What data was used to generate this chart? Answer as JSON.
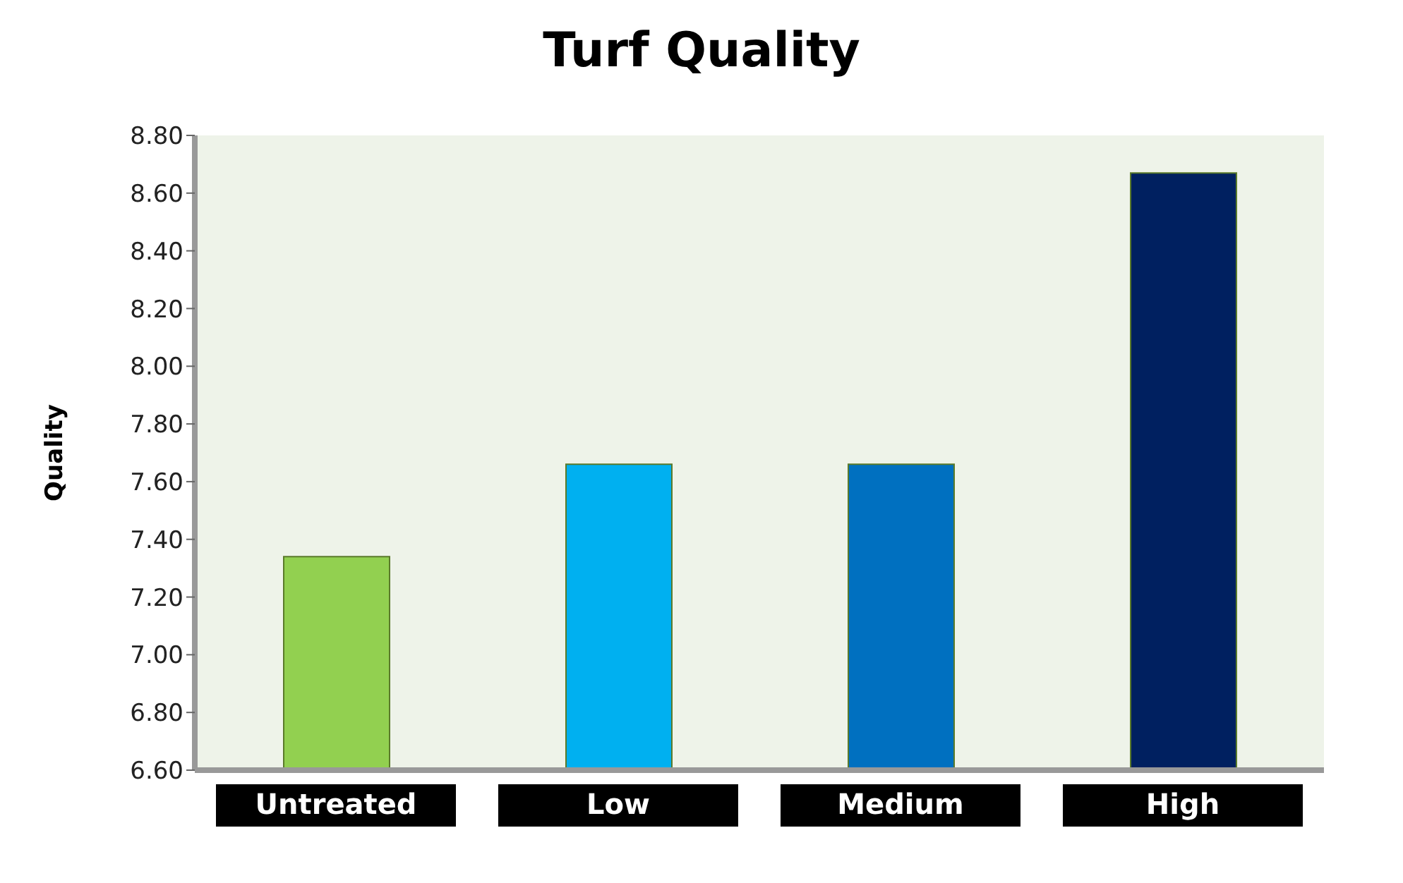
{
  "chart_data": {
    "type": "bar",
    "title": "Turf Quality",
    "ylabel": "Quality",
    "categories": [
      "Untreated",
      "Low",
      "Medium",
      "High"
    ],
    "values": [
      7.34,
      7.66,
      7.66,
      8.67
    ],
    "colors": [
      "#92d050",
      "#00b0f0",
      "#0070c0",
      "#002060"
    ],
    "ylim": [
      6.6,
      8.8
    ],
    "yticks": [
      {
        "value": 6.6,
        "label": "6.60"
      },
      {
        "value": 6.8,
        "label": "6.80"
      },
      {
        "value": 7.0,
        "label": "7.00"
      },
      {
        "value": 7.2,
        "label": "7.20"
      },
      {
        "value": 7.4,
        "label": "7.40"
      },
      {
        "value": 7.6,
        "label": "7.60"
      },
      {
        "value": 7.8,
        "label": "7.80"
      },
      {
        "value": 8.0,
        "label": "8.00"
      },
      {
        "value": 8.2,
        "label": "8.20"
      },
      {
        "value": 8.4,
        "label": "8.40"
      },
      {
        "value": 8.6,
        "label": "8.60"
      },
      {
        "value": 8.8,
        "label": "8.80"
      }
    ],
    "grid": false,
    "legend": false
  }
}
